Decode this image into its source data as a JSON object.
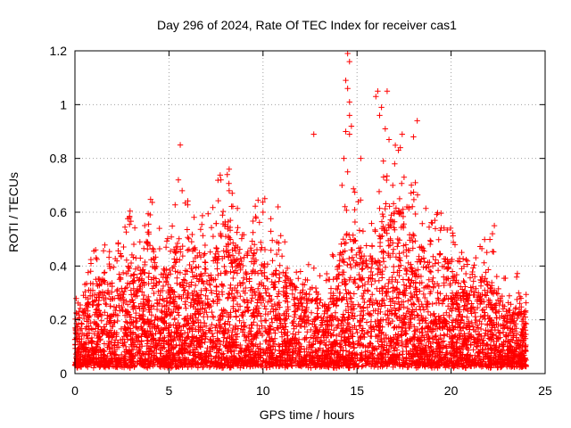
{
  "chart_data": {
    "type": "scatter",
    "title": "Day 296 of 2024, Rate Of TEC Index for receiver cas1",
    "xlabel": "GPS time / hours",
    "ylabel": "ROTI / TECUs",
    "xlim": [
      0,
      25
    ],
    "ylim": [
      0,
      1.2
    ],
    "xticks": [
      0,
      5,
      10,
      15,
      20,
      25
    ],
    "yticks": [
      0,
      0.2,
      0.4,
      0.6,
      0.8,
      1,
      1.2
    ],
    "xtick_labels": [
      "0",
      "5",
      "10",
      "15",
      "20",
      "25"
    ],
    "ytick_labels": [
      "0",
      "0.2",
      "0.4",
      "0.6",
      "0.8",
      "1",
      "1.2"
    ],
    "grid": true,
    "marker": "plus",
    "color": "#ff0000",
    "envelope": {
      "x": [
        0,
        0.5,
        1,
        1.5,
        2,
        2.5,
        3,
        3.5,
        4,
        4.5,
        5,
        5.5,
        6,
        6.5,
        7,
        7.5,
        8,
        8.5,
        9,
        9.5,
        10,
        10.5,
        11,
        11.5,
        12,
        12.5,
        13,
        13.5,
        14,
        14.5,
        15,
        15.5,
        16,
        16.5,
        17,
        17.5,
        18,
        18.5,
        19,
        19.5,
        20,
        20.5,
        21,
        21.5,
        22,
        22.5,
        23,
        23.5,
        24
      ],
      "typical_max": [
        0.22,
        0.26,
        0.34,
        0.36,
        0.34,
        0.4,
        0.46,
        0.38,
        0.5,
        0.4,
        0.38,
        0.52,
        0.5,
        0.46,
        0.44,
        0.52,
        0.58,
        0.48,
        0.44,
        0.46,
        0.5,
        0.42,
        0.38,
        0.34,
        0.32,
        0.3,
        0.28,
        0.3,
        0.42,
        0.6,
        0.5,
        0.46,
        0.55,
        0.62,
        0.65,
        0.6,
        0.52,
        0.48,
        0.44,
        0.46,
        0.4,
        0.34,
        0.32,
        0.36,
        0.38,
        0.3,
        0.26,
        0.28,
        0.22
      ]
    },
    "notable_points": [
      {
        "x": 5.6,
        "y": 0.85
      },
      {
        "x": 5.5,
        "y": 0.72
      },
      {
        "x": 5.7,
        "y": 0.68
      },
      {
        "x": 8.2,
        "y": 0.76
      },
      {
        "x": 8.1,
        "y": 0.74
      },
      {
        "x": 8.2,
        "y": 0.68
      },
      {
        "x": 12.7,
        "y": 0.89
      },
      {
        "x": 10.8,
        "y": 0.62
      },
      {
        "x": 10.0,
        "y": 0.6
      },
      {
        "x": 14.5,
        "y": 1.19
      },
      {
        "x": 14.6,
        "y": 1.16
      },
      {
        "x": 14.4,
        "y": 1.09
      },
      {
        "x": 14.5,
        "y": 1.06
      },
      {
        "x": 14.6,
        "y": 1.01
      },
      {
        "x": 14.6,
        "y": 0.96
      },
      {
        "x": 14.4,
        "y": 0.9
      },
      {
        "x": 14.6,
        "y": 0.89
      },
      {
        "x": 14.7,
        "y": 0.92
      },
      {
        "x": 14.3,
        "y": 0.8
      },
      {
        "x": 14.5,
        "y": 0.75
      },
      {
        "x": 14.2,
        "y": 0.7
      },
      {
        "x": 15.2,
        "y": 0.8
      },
      {
        "x": 16.1,
        "y": 1.05
      },
      {
        "x": 16.0,
        "y": 1.03
      },
      {
        "x": 16.6,
        "y": 1.05
      },
      {
        "x": 16.3,
        "y": 0.99
      },
      {
        "x": 16.2,
        "y": 0.96
      },
      {
        "x": 16.5,
        "y": 0.91
      },
      {
        "x": 16.7,
        "y": 0.87
      },
      {
        "x": 16.4,
        "y": 0.79
      },
      {
        "x": 17.2,
        "y": 0.83
      },
      {
        "x": 17.0,
        "y": 0.78
      },
      {
        "x": 17.4,
        "y": 0.89
      },
      {
        "x": 17.3,
        "y": 0.84
      },
      {
        "x": 18.2,
        "y": 0.94
      },
      {
        "x": 18.0,
        "y": 0.88
      },
      {
        "x": 18.1,
        "y": 0.71
      },
      {
        "x": 17.5,
        "y": 0.73
      },
      {
        "x": 16.9,
        "y": 0.7
      },
      {
        "x": 2.9,
        "y": 0.58
      },
      {
        "x": 4.0,
        "y": 0.59
      },
      {
        "x": 22.3,
        "y": 0.55
      },
      {
        "x": 22.2,
        "y": 0.52
      },
      {
        "x": 19.0,
        "y": 0.56
      },
      {
        "x": 1.1,
        "y": 0.46
      }
    ]
  }
}
